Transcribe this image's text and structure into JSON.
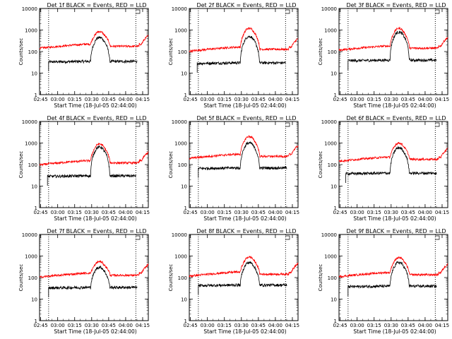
{
  "chart_data": [
    {
      "type": "line",
      "title": "Det 1f BLACK = Events, RED = LLD",
      "xlabel": "Start Time (18-Jul-05 02:44:00)",
      "ylabel": "Counts/sec",
      "log_y": true,
      "ylim": [
        1,
        10000
      ],
      "x_tick_labels": [
        "02:45",
        "03:00",
        "03:15",
        "03:30",
        "03:45",
        "04:00",
        "04:15"
      ],
      "y_tick_labels": [
        "1",
        "10",
        "100",
        "1000",
        "10000"
      ],
      "series": [
        {
          "name": "Events",
          "color": "#000000",
          "start": "02:52",
          "end": "04:10",
          "base": 35,
          "peak": 450
        },
        {
          "name": "LLD",
          "color": "#ff0000",
          "start": "02:44",
          "end": "04:20",
          "base": 220,
          "peak": 850
        }
      ]
    },
    {
      "type": "line",
      "title": "Det 2f BLACK = Events, RED = LLD",
      "xlabel": "Start Time (18-Jul-05 02:44:00)",
      "ylabel": "Counts/sec",
      "log_y": true,
      "ylim": [
        1,
        10000
      ],
      "x_tick_labels": [
        "02:45",
        "03:00",
        "03:15",
        "03:30",
        "03:45",
        "04:00",
        "04:15"
      ],
      "y_tick_labels": [
        "1",
        "10",
        "100",
        "1000",
        "10000"
      ],
      "series": [
        {
          "name": "Events",
          "color": "#000000",
          "start": "02:51",
          "end": "04:09",
          "base": 30,
          "peak": 500
        },
        {
          "name": "LLD",
          "color": "#ff0000",
          "start": "02:44",
          "end": "04:20",
          "base": 160,
          "peak": 1200
        }
      ]
    },
    {
      "type": "line",
      "title": "Det 3f BLACK = Events, RED = LLD",
      "xlabel": "Start Time (18-Jul-05 02:44:00)",
      "ylabel": "Counts/sec",
      "log_y": true,
      "ylim": [
        1,
        10000
      ],
      "x_tick_labels": [
        "02:45",
        "03:00",
        "03:15",
        "03:30",
        "03:45",
        "04:00",
        "04:15"
      ],
      "y_tick_labels": [
        "1",
        "10",
        "100",
        "1000",
        "10000"
      ],
      "series": [
        {
          "name": "Events",
          "color": "#000000",
          "start": "02:52",
          "end": "04:10",
          "base": 40,
          "peak": 800
        },
        {
          "name": "LLD",
          "color": "#ff0000",
          "start": "02:44",
          "end": "04:20",
          "base": 180,
          "peak": 1200
        }
      ]
    },
    {
      "type": "line",
      "title": "Det 4f BLACK = Events, RED = LLD",
      "xlabel": "Start Time (18-Jul-05 02:44:00)",
      "ylabel": "Counts/sec",
      "log_y": true,
      "ylim": [
        1,
        10000
      ],
      "x_tick_labels": [
        "02:45",
        "03:00",
        "03:15",
        "03:30",
        "03:45",
        "04:00",
        "04:15"
      ],
      "y_tick_labels": [
        "1",
        "10",
        "100",
        "1000",
        "10000"
      ],
      "series": [
        {
          "name": "Events",
          "color": "#000000",
          "start": "02:51",
          "end": "04:09",
          "base": 30,
          "peak": 650
        },
        {
          "name": "LLD",
          "color": "#ff0000",
          "start": "02:44",
          "end": "04:20",
          "base": 150,
          "peak": 900
        }
      ]
    },
    {
      "type": "line",
      "title": "Det 5f BLACK = Events, RED = LLD",
      "xlabel": "Start Time (18-Jul-05 02:44:00)",
      "ylabel": "Counts/sec",
      "log_y": true,
      "ylim": [
        1,
        10000
      ],
      "x_tick_labels": [
        "02:45",
        "03:00",
        "03:15",
        "03:30",
        "03:45",
        "04:00",
        "04:15"
      ],
      "y_tick_labels": [
        "1",
        "10",
        "100",
        "1000",
        "10000"
      ],
      "series": [
        {
          "name": "Events",
          "color": "#000000",
          "start": "02:52",
          "end": "04:10",
          "base": 70,
          "peak": 1000
        },
        {
          "name": "LLD",
          "color": "#ff0000",
          "start": "02:44",
          "end": "04:20",
          "base": 300,
          "peak": 2000
        }
      ]
    },
    {
      "type": "line",
      "title": "Det 6f BLACK = Events, RED = LLD",
      "xlabel": "Start Time (18-Jul-05 02:44:00)",
      "ylabel": "Counts/sec",
      "log_y": true,
      "ylim": [
        1,
        10000
      ],
      "x_tick_labels": [
        "02:45",
        "03:00",
        "03:15",
        "03:30",
        "03:45",
        "04:00",
        "04:15"
      ],
      "y_tick_labels": [
        "1",
        "10",
        "100",
        "1000",
        "10000"
      ],
      "series": [
        {
          "name": "Events",
          "color": "#000000",
          "start": "02:50",
          "end": "04:10",
          "base": 40,
          "peak": 600
        },
        {
          "name": "LLD",
          "color": "#ff0000",
          "start": "02:44",
          "end": "04:20",
          "base": 220,
          "peak": 1000
        }
      ]
    },
    {
      "type": "line",
      "title": "Det 7f BLACK = Events, RED = LLD",
      "xlabel": "Start Time (18-Jul-05 02:44:00)",
      "ylabel": "Counts/sec",
      "log_y": true,
      "ylim": [
        1,
        10000
      ],
      "x_tick_labels": [
        "02:45",
        "03:00",
        "03:15",
        "03:30",
        "03:45",
        "04:00",
        "04:15"
      ],
      "y_tick_labels": [
        "1",
        "10",
        "100",
        "1000",
        "10000"
      ],
      "series": [
        {
          "name": "Events",
          "color": "#000000",
          "start": "02:52",
          "end": "04:10",
          "base": 35,
          "peak": 300
        },
        {
          "name": "LLD",
          "color": "#ff0000",
          "start": "02:44",
          "end": "04:20",
          "base": 160,
          "peak": 550
        }
      ]
    },
    {
      "type": "line",
      "title": "Det 8f BLACK = Events, RED = LLD",
      "xlabel": "Start Time (18-Jul-05 02:44:00)",
      "ylabel": "Counts/sec",
      "log_y": true,
      "ylim": [
        1,
        10000
      ],
      "x_tick_labels": [
        "02:45",
        "03:00",
        "03:15",
        "03:30",
        "03:45",
        "04:00",
        "04:15"
      ],
      "y_tick_labels": [
        "1",
        "10",
        "100",
        "1000",
        "10000"
      ],
      "series": [
        {
          "name": "Events",
          "color": "#000000",
          "start": "02:52",
          "end": "04:10",
          "base": 45,
          "peak": 500
        },
        {
          "name": "LLD",
          "color": "#ff0000",
          "start": "02:44",
          "end": "04:20",
          "base": 180,
          "peak": 900
        }
      ]
    },
    {
      "type": "line",
      "title": "Det 9f BLACK = Events, RED = LLD",
      "xlabel": "Start Time (18-Jul-05 02:44:00)",
      "ylabel": "Counts/sec",
      "log_y": true,
      "ylim": [
        1,
        10000
      ],
      "x_tick_labels": [
        "02:45",
        "03:00",
        "03:15",
        "03:30",
        "03:45",
        "04:00",
        "04:15"
      ],
      "y_tick_labels": [
        "1",
        "10",
        "100",
        "1000",
        "10000"
      ],
      "series": [
        {
          "name": "Events",
          "color": "#000000",
          "start": "02:52",
          "end": "04:10",
          "base": 40,
          "peak": 500
        },
        {
          "name": "LLD",
          "color": "#ff0000",
          "start": "02:44",
          "end": "04:20",
          "base": 170,
          "peak": 850
        }
      ]
    }
  ],
  "time_range": {
    "start": "02:44",
    "end": "04:20"
  },
  "marker_times": [
    "02:52",
    "04:09"
  ]
}
